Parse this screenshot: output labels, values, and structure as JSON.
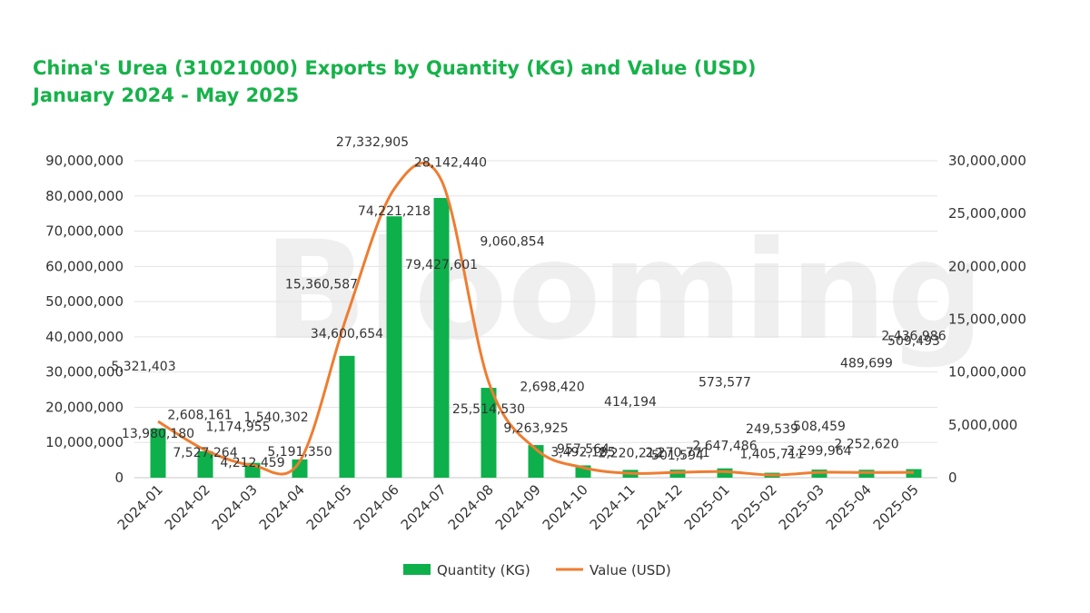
{
  "title_lines": [
    "China's Urea (31021000) Exports by Quantity (KG) and Value (USD)",
    "January 2024 - May 2025"
  ],
  "watermark": "Blooming",
  "colors": {
    "title": "#17b24a",
    "bar": "#0db04b",
    "line": "#ee7d31",
    "grid": "#e3e3e3"
  },
  "chart_data": {
    "type": "bar",
    "title": "China's Urea (31021000) Exports by Quantity (KG) and Value (USD)",
    "subtitle": "January 2024 - May 2025",
    "categories": [
      "2024-01",
      "2024-02",
      "2024-03",
      "2024-04",
      "2024-05",
      "2024-06",
      "2024-07",
      "2024-08",
      "2024-09",
      "2024-10",
      "2024-11",
      "2024-12",
      "2025-01",
      "2025-02",
      "2025-03",
      "2025-04",
      "2025-05"
    ],
    "series": [
      {
        "name": "Quantity (KG)",
        "type": "bar",
        "axis": "left",
        "values": [
          13980180,
          7527264,
          4212459,
          5191350,
          34600654,
          74221218,
          79427601,
          25514530,
          9263925,
          3492185,
          2220212,
          2270771,
          2647486,
          1405711,
          2299964,
          2252620,
          2436986
        ],
        "labels": [
          "13,980,180",
          "7,527,264",
          "4,212,459",
          "5,191,350",
          "34,600,654",
          "74,221,218",
          "79,427,601",
          "25,514,530",
          "9,263,925",
          "3,492,185",
          "2,220,212",
          "2,270,771",
          "2,647,486",
          "1,405,711",
          "2,299,964",
          "2,252,620",
          "2,436,986"
        ]
      },
      {
        "name": "Value (USD)",
        "type": "line",
        "axis": "right",
        "values": [
          5321403,
          2608161,
          1174955,
          1540302,
          15360587,
          27332905,
          28142440,
          9060854,
          2698420,
          957564,
          414194,
          501594,
          573577,
          249539,
          508459,
          489699,
          509493
        ],
        "labels": [
          "5,321,403",
          "2,608,161",
          "1,174,955",
          "1,540,302",
          "15,360,587",
          "27,332,905",
          "28,142,440",
          "9,060,854",
          "2,698,420",
          "957,564",
          "414,194",
          "501,594",
          "573,577",
          "249,539",
          "508,459",
          "489,699",
          "509,493"
        ]
      }
    ],
    "y_left": {
      "min": 0,
      "max": 90000000,
      "step": 10000000,
      "tick_labels": [
        "0",
        "10,000,000",
        "20,000,000",
        "30,000,000",
        "40,000,000",
        "50,000,000",
        "60,000,000",
        "70,000,000",
        "80,000,000",
        "90,000,000"
      ]
    },
    "y_right": {
      "min": 0,
      "max": 30000000,
      "step": 5000000,
      "tick_labels": [
        "0",
        "5,000,000",
        "10,000,000",
        "15,000,000",
        "20,000,000",
        "25,000,000",
        "30,000,000"
      ]
    },
    "grid": true,
    "legend": "bottom",
    "legend_entries": [
      "Quantity (KG)",
      "Value (USD)"
    ]
  }
}
